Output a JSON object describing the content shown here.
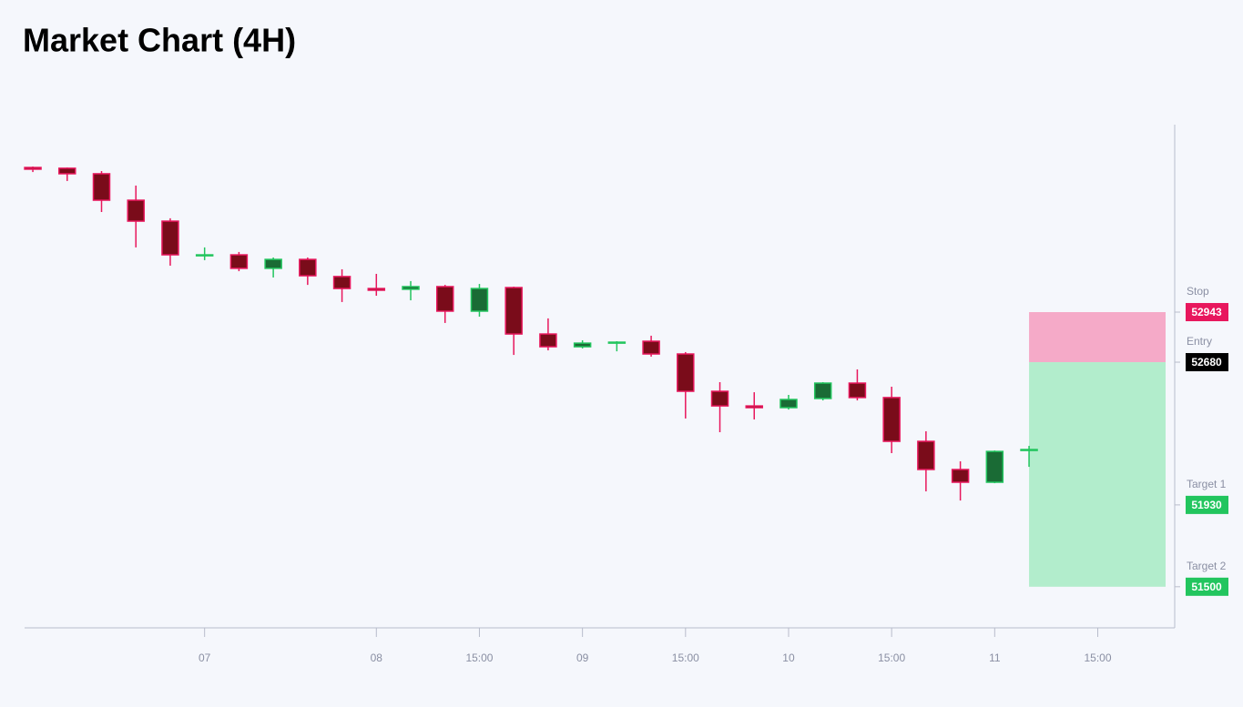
{
  "chart_data": {
    "type": "candlestick",
    "title": "Market Chart (4H)",
    "open": [
      53703,
      53699,
      53670,
      53531,
      53421,
      53239,
      53244,
      53173,
      53220,
      53130,
      53067,
      53063,
      53077,
      52948,
      53072,
      52828,
      52761,
      52780,
      52790,
      52723,
      52527,
      52450,
      52441,
      52489,
      52570,
      52494,
      52264,
      52116,
      52049,
      52216
    ],
    "high": [
      53708,
      53703,
      53684,
      53608,
      53436,
      53283,
      53259,
      53230,
      53230,
      53168,
      53144,
      53106,
      53086,
      53091,
      53077,
      52910,
      52795,
      52790,
      52819,
      52733,
      52575,
      52522,
      52508,
      52575,
      52642,
      52551,
      52317,
      52159,
      52216,
      52240
    ],
    "low": [
      53679,
      53632,
      53469,
      53283,
      53187,
      53216,
      53158,
      53125,
      53086,
      52996,
      53029,
      53005,
      52886,
      52919,
      52718,
      52742,
      52752,
      52737,
      52709,
      52384,
      52312,
      52379,
      52431,
      52479,
      52479,
      52202,
      52001,
      51953,
      52044,
      52130
    ],
    "close": [
      53694,
      53670,
      53531,
      53421,
      53244,
      53244,
      53173,
      53220,
      53134,
      53067,
      53058,
      53077,
      52948,
      53067,
      52828,
      52761,
      52780,
      52785,
      52723,
      52527,
      52450,
      52441,
      52484,
      52570,
      52494,
      52264,
      52116,
      52049,
      52211,
      52221
    ],
    "up_color": "#22c55e",
    "up_fill": "#1a6b35",
    "down_color": "#e8175d",
    "down_fill": "#7a0c1a",
    "xlim": [
      -0.24,
      33.24
    ],
    "xticks": [
      {
        "value": 5,
        "label": "07"
      },
      {
        "value": 10,
        "label": "08"
      },
      {
        "value": 13,
        "label": "15:00"
      },
      {
        "value": 16,
        "label": "09"
      },
      {
        "value": 19,
        "label": "15:00"
      },
      {
        "value": 22,
        "label": "10"
      },
      {
        "value": 25,
        "label": "15:00"
      },
      {
        "value": 28,
        "label": "11"
      },
      {
        "value": 31,
        "label": "15:00"
      }
    ],
    "ylim": [
      51284,
      53928
    ],
    "levels": [
      {
        "label": "Stop",
        "value": 52943,
        "color": "#e8175d"
      },
      {
        "label": "Entry",
        "value": 52680,
        "color": "#000000"
      },
      {
        "label": "Target 1",
        "value": 51930,
        "color": "#22c55e"
      },
      {
        "label": "Target 2",
        "value": 51500,
        "color": "#22c55e"
      }
    ],
    "risk_color": "#f5aac8",
    "reward_color": "#b2edcc"
  }
}
